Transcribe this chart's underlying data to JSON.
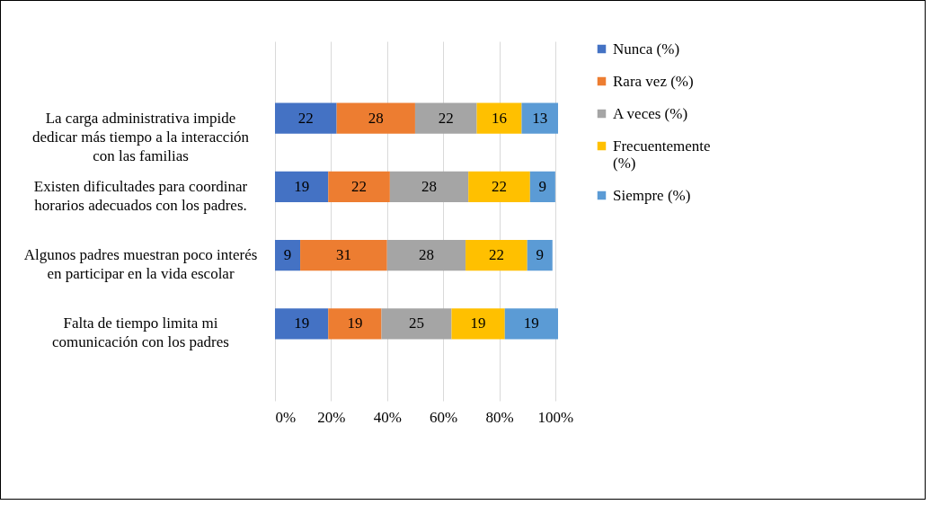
{
  "chart_data": {
    "type": "bar",
    "orientation": "horizontal",
    "stacked": true,
    "data_labels": true,
    "grid": "x",
    "legend": "right",
    "categories": [
      "La carga administrativa impide dedicar más tiempo a la interacción con las familias",
      "Existen dificultades para coordinar horarios adecuados con los padres.",
      "Algunos padres muestran poco interés en participar en la vida escolar",
      "Falta de tiempo limita mi comunicación con los padres"
    ],
    "series": [
      {
        "name": "Nunca (%)",
        "color": "#4472c4",
        "values": [
          22,
          19,
          9,
          19
        ]
      },
      {
        "name": "Rara vez (%)",
        "color": "#ed7d31",
        "values": [
          28,
          22,
          31,
          19
        ]
      },
      {
        "name": "A veces (%)",
        "color": "#a5a5a5",
        "values": [
          22,
          28,
          28,
          25
        ]
      },
      {
        "name": "Frecuentemente (%)",
        "color": "#ffc000",
        "values": [
          16,
          22,
          22,
          19
        ]
      },
      {
        "name": "Siempre (%)",
        "color": "#5b9bd5",
        "values": [
          13,
          9,
          9,
          19
        ]
      }
    ],
    "xlim": [
      0,
      101
    ],
    "xticks": [
      {
        "value": 0,
        "label": "0%"
      },
      {
        "value": 20,
        "label": "20%"
      },
      {
        "value": 40,
        "label": "40%"
      },
      {
        "value": 60,
        "label": "60%"
      },
      {
        "value": 80,
        "label": "80%"
      },
      {
        "value": 100,
        "label": "100%"
      }
    ]
  }
}
